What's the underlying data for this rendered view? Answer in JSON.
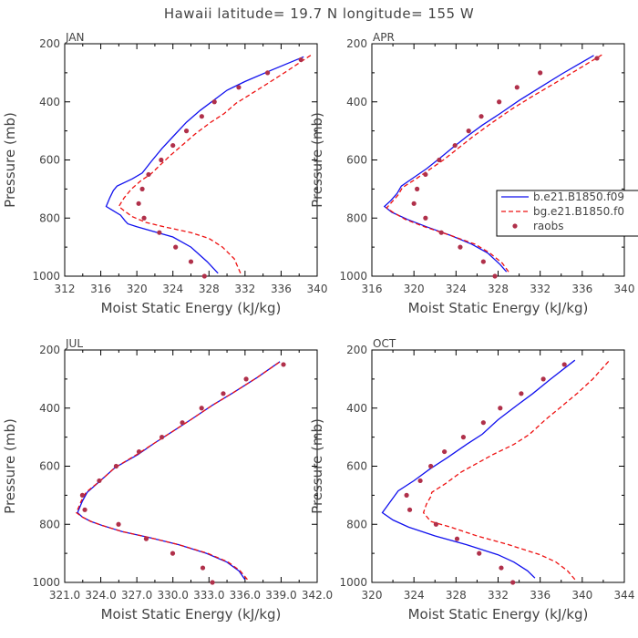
{
  "title": "Hawaii  latitude= 19.7 N longitude= 155 W",
  "colors": {
    "model_a": "#1010ee",
    "model_b": "#ee1111",
    "obs": "#b0304a",
    "axis": "#000000",
    "text": "#444444"
  },
  "legend": {
    "entries": [
      {
        "label": "b.e21.B1850.f09",
        "style": "solid",
        "color": "#1010ee"
      },
      {
        "label": "bg.e21.B1850.f0",
        "style": "dashed",
        "color": "#ee1111"
      },
      {
        "label": "raobs",
        "style": "marker",
        "color": "#b0304a"
      }
    ]
  },
  "chart_data": [
    {
      "type": "line",
      "month": "JAN",
      "xlabel": "Moist Static Energy (kJ/kg)",
      "ylabel": "Pressure (mb)",
      "xlim": [
        312,
        340
      ],
      "ylim": [
        1000,
        200
      ],
      "xticks": [
        "312",
        "316",
        "320",
        "324",
        "328",
        "332",
        "336",
        "340"
      ],
      "yticks": [
        "200",
        "400",
        "600",
        "800",
        "1000"
      ],
      "series": [
        {
          "name": "b.e21.B1850.f09",
          "style": "solid",
          "points": [
            [
              329,
              990
            ],
            [
              327.8,
              950
            ],
            [
              326,
              900
            ],
            [
              324,
              865
            ],
            [
              320,
              830
            ],
            [
              319,
              820
            ],
            [
              318.7,
              810
            ],
            [
              318.2,
              790
            ],
            [
              317.4,
              775
            ],
            [
              316.6,
              760
            ],
            [
              317.0,
              730
            ],
            [
              317.4,
              705
            ],
            [
              317.8,
              690
            ],
            [
              319.5,
              665
            ],
            [
              320.6,
              645
            ],
            [
              321.6,
              605
            ],
            [
              322.8,
              560
            ],
            [
              324.0,
              520
            ],
            [
              325.5,
              470
            ],
            [
              327.0,
              430
            ],
            [
              330,
              360
            ],
            [
              332,
              330
            ],
            [
              335,
              290
            ],
            [
              338.5,
              245
            ]
          ]
        },
        {
          "name": "bg.e21.B1850.f0",
          "style": "dashed",
          "points": [
            [
              331.5,
              990
            ],
            [
              330.8,
              940
            ],
            [
              329.5,
              900
            ],
            [
              328,
              870
            ],
            [
              326,
              850
            ],
            [
              323,
              830
            ],
            [
              321,
              815
            ],
            [
              319.5,
              795
            ],
            [
              318.6,
              775
            ],
            [
              318.0,
              760
            ],
            [
              318.6,
              730
            ],
            [
              319.4,
              700
            ],
            [
              320.5,
              670
            ],
            [
              321.5,
              650
            ],
            [
              322.5,
              620
            ],
            [
              323.7,
              585
            ],
            [
              325,
              550
            ],
            [
              326.5,
              510
            ],
            [
              328.2,
              470
            ],
            [
              329.7,
              440
            ],
            [
              331,
              405
            ],
            [
              332.8,
              370
            ],
            [
              334.6,
              335
            ],
            [
              336.6,
              295
            ],
            [
              339.5,
              235
            ]
          ]
        }
      ],
      "obs": [
        [
          338.2,
          255
        ],
        [
          334.5,
          300
        ],
        [
          331.3,
          350
        ],
        [
          328.6,
          400
        ],
        [
          327.2,
          450
        ],
        [
          325.5,
          500
        ],
        [
          324.0,
          550
        ],
        [
          322.7,
          600
        ],
        [
          321.3,
          650
        ],
        [
          320.6,
          700
        ],
        [
          320.2,
          750
        ],
        [
          320.8,
          800
        ],
        [
          322.5,
          850
        ],
        [
          324.3,
          900
        ],
        [
          326.0,
          950
        ],
        [
          327.5,
          1000
        ]
      ]
    },
    {
      "type": "line",
      "month": "APR",
      "xlabel": "Moist Static Energy (kJ/kg)",
      "ylabel": "Pressure (mb)",
      "xlim": [
        316,
        340
      ],
      "ylim": [
        1000,
        200
      ],
      "xticks": [
        "316",
        "320",
        "324",
        "328",
        "332",
        "336",
        "340"
      ],
      "yticks": [
        "200",
        "400",
        "600",
        "800",
        "1000"
      ],
      "series": [
        {
          "name": "b.e21.B1850.f09",
          "style": "solid",
          "points": [
            [
              328.8,
              985
            ],
            [
              328.2,
              960
            ],
            [
              327.0,
              920
            ],
            [
              325.5,
              890
            ],
            [
              323.5,
              860
            ],
            [
              321.2,
              830
            ],
            [
              319.4,
              805
            ],
            [
              317.9,
              780
            ],
            [
              317.2,
              760
            ],
            [
              317.8,
              740
            ],
            [
              318.4,
              715
            ],
            [
              318.8,
              690
            ],
            [
              320.0,
              660
            ],
            [
              321.2,
              630
            ],
            [
              322.6,
              590
            ],
            [
              323.6,
              560
            ],
            [
              325.0,
              520
            ],
            [
              326.5,
              480
            ],
            [
              328.2,
              440
            ],
            [
              330.0,
              395
            ],
            [
              332.0,
              350
            ],
            [
              334.0,
              305
            ],
            [
              337.1,
              240
            ]
          ]
        },
        {
          "name": "bg.e21.B1850.f0",
          "style": "dashed",
          "points": [
            [
              329.0,
              985
            ],
            [
              328.4,
              955
            ],
            [
              327.2,
              920
            ],
            [
              325.8,
              890
            ],
            [
              323.5,
              860
            ],
            [
              321.0,
              830
            ],
            [
              319.2,
              805
            ],
            [
              318.0,
              780
            ],
            [
              317.4,
              765
            ],
            [
              317.9,
              745
            ],
            [
              318.5,
              720
            ],
            [
              318.9,
              695
            ],
            [
              320.2,
              665
            ],
            [
              321.4,
              635
            ],
            [
              322.8,
              600
            ],
            [
              324.2,
              560
            ],
            [
              325.6,
              520
            ],
            [
              327.3,
              475
            ],
            [
              329.3,
              425
            ],
            [
              331.3,
              380
            ],
            [
              333.2,
              340
            ],
            [
              335.5,
              290
            ],
            [
              338.0,
              235
            ]
          ]
        }
      ],
      "obs": [
        [
          337.4,
          250
        ],
        [
          332.0,
          300
        ],
        [
          329.8,
          350
        ],
        [
          328.1,
          400
        ],
        [
          326.4,
          450
        ],
        [
          325.2,
          500
        ],
        [
          323.9,
          550
        ],
        [
          322.4,
          600
        ],
        [
          321.1,
          650
        ],
        [
          320.3,
          700
        ],
        [
          320.0,
          750
        ],
        [
          321.1,
          800
        ],
        [
          322.6,
          850
        ],
        [
          324.4,
          900
        ],
        [
          326.6,
          950
        ],
        [
          327.7,
          1000
        ]
      ]
    },
    {
      "type": "line",
      "month": "JUL",
      "xlabel": "Moist Static Energy (kJ/kg)",
      "ylabel": "Pressure (mb)",
      "xlim": [
        321.03,
        342.0
      ],
      "ylim": [
        1000,
        200
      ],
      "xticks": [
        "321.0",
        "324.0",
        "327.0",
        "330.0",
        "333.0",
        "336.0",
        "339.0",
        "342.0"
      ],
      "yticks": [
        "200",
        "400",
        "600",
        "800",
        "1000"
      ],
      "series": [
        {
          "name": "b.e21.B1850.f09",
          "style": "solid",
          "points": [
            [
              336.0,
              990
            ],
            [
              335.5,
              960
            ],
            [
              334.5,
              930
            ],
            [
              332.8,
              900
            ],
            [
              330.5,
              870
            ],
            [
              328.0,
              845
            ],
            [
              325.8,
              825
            ],
            [
              324.2,
              805
            ],
            [
              323.2,
              790
            ],
            [
              322.5,
              775
            ],
            [
              322.1,
              760
            ],
            [
              322.5,
              720
            ],
            [
              322.9,
              690
            ],
            [
              324.0,
              650
            ],
            [
              325.2,
              605
            ],
            [
              327.1,
              560
            ],
            [
              328.5,
              520
            ],
            [
              330.0,
              480
            ],
            [
              331.5,
              440
            ],
            [
              333.3,
              390
            ],
            [
              335.1,
              345
            ],
            [
              337.0,
              295
            ],
            [
              338.9,
              240
            ]
          ]
        },
        {
          "name": "bg.e21.B1850.f0",
          "style": "dashed",
          "points": [
            [
              336.2,
              990
            ],
            [
              335.6,
              960
            ],
            [
              334.6,
              930
            ],
            [
              332.9,
              900
            ],
            [
              330.5,
              870
            ],
            [
              328.0,
              845
            ],
            [
              325.8,
              825
            ],
            [
              324.2,
              805
            ],
            [
              323.2,
              790
            ],
            [
              322.5,
              775
            ],
            [
              322.0,
              760
            ],
            [
              322.4,
              720
            ],
            [
              322.8,
              690
            ],
            [
              324.0,
              650
            ],
            [
              325.2,
              605
            ],
            [
              327.0,
              560
            ],
            [
              328.5,
              520
            ],
            [
              330.0,
              480
            ],
            [
              331.5,
              440
            ],
            [
              333.3,
              390
            ],
            [
              335.1,
              345
            ],
            [
              337.0,
              295
            ],
            [
              339.0,
              238
            ]
          ]
        }
      ],
      "obs": [
        [
          339.2,
          250
        ],
        [
          336.1,
          300
        ],
        [
          334.2,
          350
        ],
        [
          332.4,
          400
        ],
        [
          330.8,
          450
        ],
        [
          329.1,
          500
        ],
        [
          327.2,
          550
        ],
        [
          325.3,
          600
        ],
        [
          323.9,
          650
        ],
        [
          322.5,
          700
        ],
        [
          322.7,
          750
        ],
        [
          325.5,
          800
        ],
        [
          327.8,
          850
        ],
        [
          330.0,
          900
        ],
        [
          332.5,
          950
        ],
        [
          333.3,
          1000
        ]
      ]
    },
    {
      "type": "line",
      "month": "OCT",
      "xlabel": "Moist Static Energy (kJ/kg)",
      "ylabel": "Pressure (mb)",
      "xlim": [
        320,
        344
      ],
      "ylim": [
        1000,
        200
      ],
      "xticks": [
        "320",
        "324",
        "328",
        "332",
        "336",
        "340",
        "344"
      ],
      "yticks": [
        "200",
        "400",
        "600",
        "800",
        "1000"
      ],
      "series": [
        {
          "name": "b.e21.B1850.f09",
          "style": "solid",
          "points": [
            [
              335.5,
              985
            ],
            [
              334.8,
              960
            ],
            [
              333.5,
              930
            ],
            [
              332.0,
              905
            ],
            [
              329.0,
              870
            ],
            [
              326.0,
              840
            ],
            [
              323.5,
              810
            ],
            [
              322.0,
              785
            ],
            [
              321.0,
              760
            ],
            [
              321.6,
              730
            ],
            [
              322.2,
              700
            ],
            [
              322.5,
              685
            ],
            [
              324.0,
              650
            ],
            [
              325.5,
              610
            ],
            [
              327.2,
              570
            ],
            [
              329.0,
              525
            ],
            [
              330.5,
              490
            ],
            [
              332.0,
              440
            ],
            [
              333.8,
              390
            ],
            [
              335.3,
              350
            ],
            [
              337.0,
              300
            ],
            [
              339.3,
              235
            ]
          ]
        },
        {
          "name": "bg.e21.B1850.f0",
          "style": "dashed",
          "points": [
            [
              339.3,
              990
            ],
            [
              338.6,
              960
            ],
            [
              337.5,
              930
            ],
            [
              336.0,
              905
            ],
            [
              333.0,
              870
            ],
            [
              330.0,
              840
            ],
            [
              327.5,
              810
            ],
            [
              325.6,
              790
            ],
            [
              324.9,
              760
            ],
            [
              325.2,
              730
            ],
            [
              325.6,
              705
            ],
            [
              325.7,
              690
            ],
            [
              327.0,
              660
            ],
            [
              328.5,
              620
            ],
            [
              330.0,
              590
            ],
            [
              331.5,
              560
            ],
            [
              333.5,
              525
            ],
            [
              335.0,
              490
            ],
            [
              336.5,
              440
            ],
            [
              338.0,
              395
            ],
            [
              339.5,
              350
            ],
            [
              341.0,
              300
            ],
            [
              342.6,
              235
            ]
          ]
        }
      ],
      "obs": [
        [
          338.3,
          250
        ],
        [
          336.3,
          300
        ],
        [
          334.2,
          350
        ],
        [
          332.2,
          400
        ],
        [
          330.6,
          450
        ],
        [
          328.7,
          500
        ],
        [
          326.9,
          550
        ],
        [
          325.6,
          600
        ],
        [
          324.6,
          650
        ],
        [
          323.3,
          700
        ],
        [
          323.6,
          750
        ],
        [
          326.1,
          800
        ],
        [
          328.1,
          850
        ],
        [
          330.2,
          900
        ],
        [
          332.3,
          950
        ],
        [
          333.4,
          1000
        ]
      ]
    }
  ]
}
